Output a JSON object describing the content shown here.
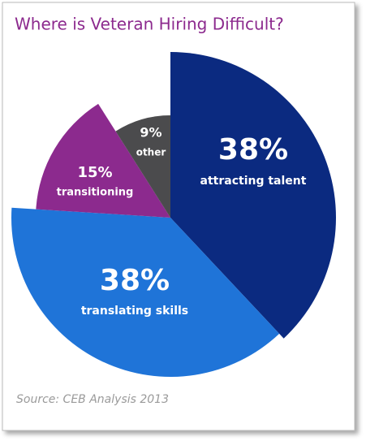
{
  "chart_data": {
    "type": "pie",
    "title": "Where is Veteran Hiring Difficult?",
    "categories": [
      "attracting talent",
      "translating skills",
      "transitioning",
      "other"
    ],
    "values": [
      38,
      38,
      15,
      9
    ],
    "value_labels": [
      "38%",
      "38%",
      "15%",
      "9%"
    ],
    "colors": [
      "#0b2a80",
      "#1f74d8",
      "#8c2a8e",
      "#4b4b4d"
    ],
    "source": "Source: CEB Analysis 2013"
  }
}
